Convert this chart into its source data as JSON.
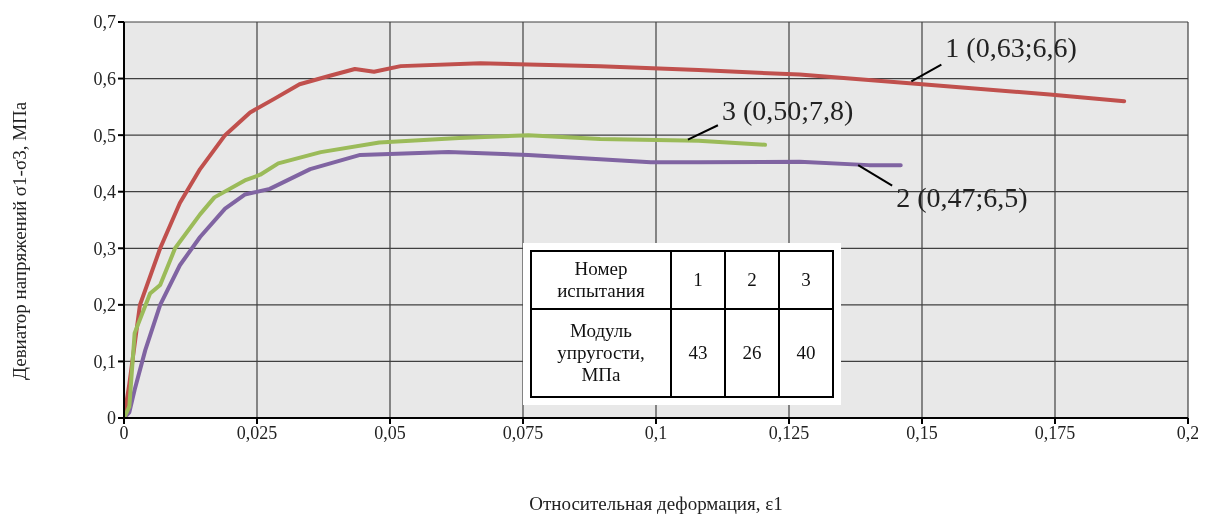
{
  "chart_data": {
    "type": "line",
    "xlabel": "Относительная деформация, ε1",
    "ylabel": "Девиатор напряжений σ1-σ3, МПа",
    "xlim": [
      0,
      0.2
    ],
    "ylim": [
      0,
      0.7
    ],
    "xticks": [
      {
        "value": 0,
        "label": "0"
      },
      {
        "value": 0.025,
        "label": "0,025"
      },
      {
        "value": 0.05,
        "label": "0,05"
      },
      {
        "value": 0.075,
        "label": "0,075"
      },
      {
        "value": 0.1,
        "label": "0,1"
      },
      {
        "value": 0.125,
        "label": "0,125"
      },
      {
        "value": 0.15,
        "label": "0,15"
      },
      {
        "value": 0.175,
        "label": "0,175"
      },
      {
        "value": 0.2,
        "label": "0,2"
      }
    ],
    "yticks": [
      {
        "value": 0,
        "label": "0"
      },
      {
        "value": 0.1,
        "label": "0,1"
      },
      {
        "value": 0.2,
        "label": "0,2"
      },
      {
        "value": 0.3,
        "label": "0,3"
      },
      {
        "value": 0.4,
        "label": "0,4"
      },
      {
        "value": 0.5,
        "label": "0,5"
      },
      {
        "value": 0.6,
        "label": "0,6"
      },
      {
        "value": 0.7,
        "label": "0,7"
      }
    ],
    "grid": true,
    "legend": false,
    "marker": "none",
    "line_style": "solid",
    "series": [
      {
        "color": "#c0504d",
        "x": [
          0,
          0.001,
          0.003,
          0.0068,
          0.0105,
          0.0143,
          0.019,
          0.0237,
          0.0284,
          0.033,
          0.0387,
          0.0434,
          0.047,
          0.052,
          0.067,
          0.0895,
          0.108,
          0.127,
          0.15,
          0.174,
          0.188
        ],
        "values": [
          0,
          0.06,
          0.2,
          0.3,
          0.38,
          0.44,
          0.5,
          0.54,
          0.565,
          0.59,
          0.605,
          0.617,
          0.612,
          0.622,
          0.627,
          0.622,
          0.615,
          0.607,
          0.59,
          0.572,
          0.56
        ]
      },
      {
        "color": "#8064a2",
        "x": [
          0,
          0.001,
          0.002,
          0.004,
          0.0068,
          0.0105,
          0.0143,
          0.019,
          0.0227,
          0.0274,
          0.035,
          0.0444,
          0.061,
          0.076,
          0.099,
          0.108,
          0.127,
          0.14,
          0.146
        ],
        "values": [
          0,
          0.01,
          0.05,
          0.12,
          0.2,
          0.27,
          0.32,
          0.37,
          0.395,
          0.405,
          0.44,
          0.465,
          0.47,
          0.465,
          0.452,
          0.452,
          0.453,
          0.447,
          0.447
        ]
      },
      {
        "color": "#9bbb59",
        "x": [
          0,
          0.001,
          0.002,
          0.0049,
          0.0068,
          0.0096,
          0.0143,
          0.017,
          0.0227,
          0.0256,
          0.029,
          0.037,
          0.048,
          0.063,
          0.076,
          0.0895,
          0.108,
          0.1205
        ],
        "values": [
          0,
          0.02,
          0.15,
          0.22,
          0.235,
          0.3,
          0.36,
          0.39,
          0.42,
          0.43,
          0.45,
          0.47,
          0.487,
          0.495,
          0.5,
          0.493,
          0.49,
          0.483
        ]
      }
    ],
    "annotations": [
      {
        "text": "1 (0,63;6,6)",
        "x": 0.148,
        "y": 0.595
      },
      {
        "text": "3 (0,50;7,8)",
        "x": 0.106,
        "y": 0.492
      },
      {
        "text": "2 (0,47;6,5)",
        "x": 0.138,
        "y": 0.447
      },
      "Номер испытания",
      "1",
      "2",
      "3",
      "Модуль упругости, МПа",
      "43",
      "26",
      "40"
    ]
  }
}
